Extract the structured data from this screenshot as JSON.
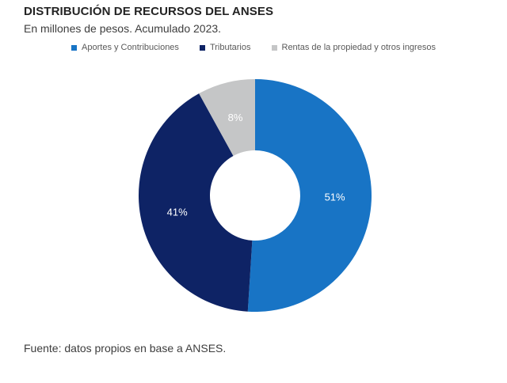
{
  "header": {
    "title": "DISTRIBUCIÓN DE RECURSOS DEL ANSES",
    "subtitle": "En millones de pesos. Acumulado 2023."
  },
  "legend": {
    "items": [
      {
        "label": "Aportes y Contribuciones",
        "color": "#1874C5"
      },
      {
        "label": "Tributarios",
        "color": "#0E2365"
      },
      {
        "label": "Rentas de la propiedad y otros ingresos",
        "color": "#C5C6C7"
      }
    ]
  },
  "chart_data": {
    "type": "pie",
    "subtype": "donut",
    "title": "DISTRIBUCIÓN DE RECURSOS DEL ANSES",
    "subtitle": "En millones de pesos. Acumulado 2023.",
    "categories": [
      "Aportes y Contribuciones",
      "Tributarios",
      "Rentas de la propiedad y otros ingresos"
    ],
    "values": [
      51,
      41,
      8
    ],
    "labels": [
      "51%",
      "41%",
      "8%"
    ],
    "colors": [
      "#1874C5",
      "#0E2365",
      "#C5C6C7"
    ],
    "label_color": "#FFFFFF",
    "start_angle_deg": 0,
    "direction": "clockwise",
    "inner_radius_ratio": 0.39,
    "legend_position": "top",
    "legend_labels": [
      "Aportes y Contribuciones",
      "Tributarios",
      "Rentas de la propiedad y otros ingresos"
    ]
  },
  "footer": {
    "source": "Fuente: datos propios en base a ANSES."
  }
}
